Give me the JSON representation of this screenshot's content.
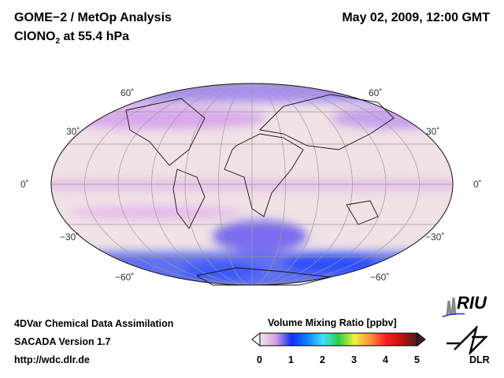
{
  "header": {
    "title": "GOME−2 / MetOp Analysis",
    "species": "ClONO",
    "species_sub": "2",
    "level": " at 55.4 hPa",
    "datetime": "May 02, 2009, 12:00 GMT"
  },
  "map": {
    "lat_labels_left": [
      "60˚",
      "30˚",
      "0˚",
      "−30˚",
      "−60˚"
    ],
    "lat_labels_right": [
      "60˚",
      "30˚",
      "0˚",
      "−30˚",
      "−60˚"
    ]
  },
  "footer": {
    "line1": "4DVar Chemical Data Assimilation",
    "line2": "SACADA Version 1.7",
    "line3": "http://wdc.dlr.de"
  },
  "colorbar": {
    "title": "Volume Mixing Ratio [ppbv]",
    "ticks": [
      "0",
      "1",
      "2",
      "3",
      "4",
      "5"
    ],
    "colors": [
      "#f3e6ea",
      "#d8a0e6",
      "#1030ff",
      "#1080ff",
      "#40e0ff",
      "#30d040",
      "#f0f040",
      "#ff9040",
      "#ff2020",
      "#c01010",
      "#402020"
    ]
  },
  "logos": {
    "riu": "RIU",
    "dlr": "DLR"
  }
}
